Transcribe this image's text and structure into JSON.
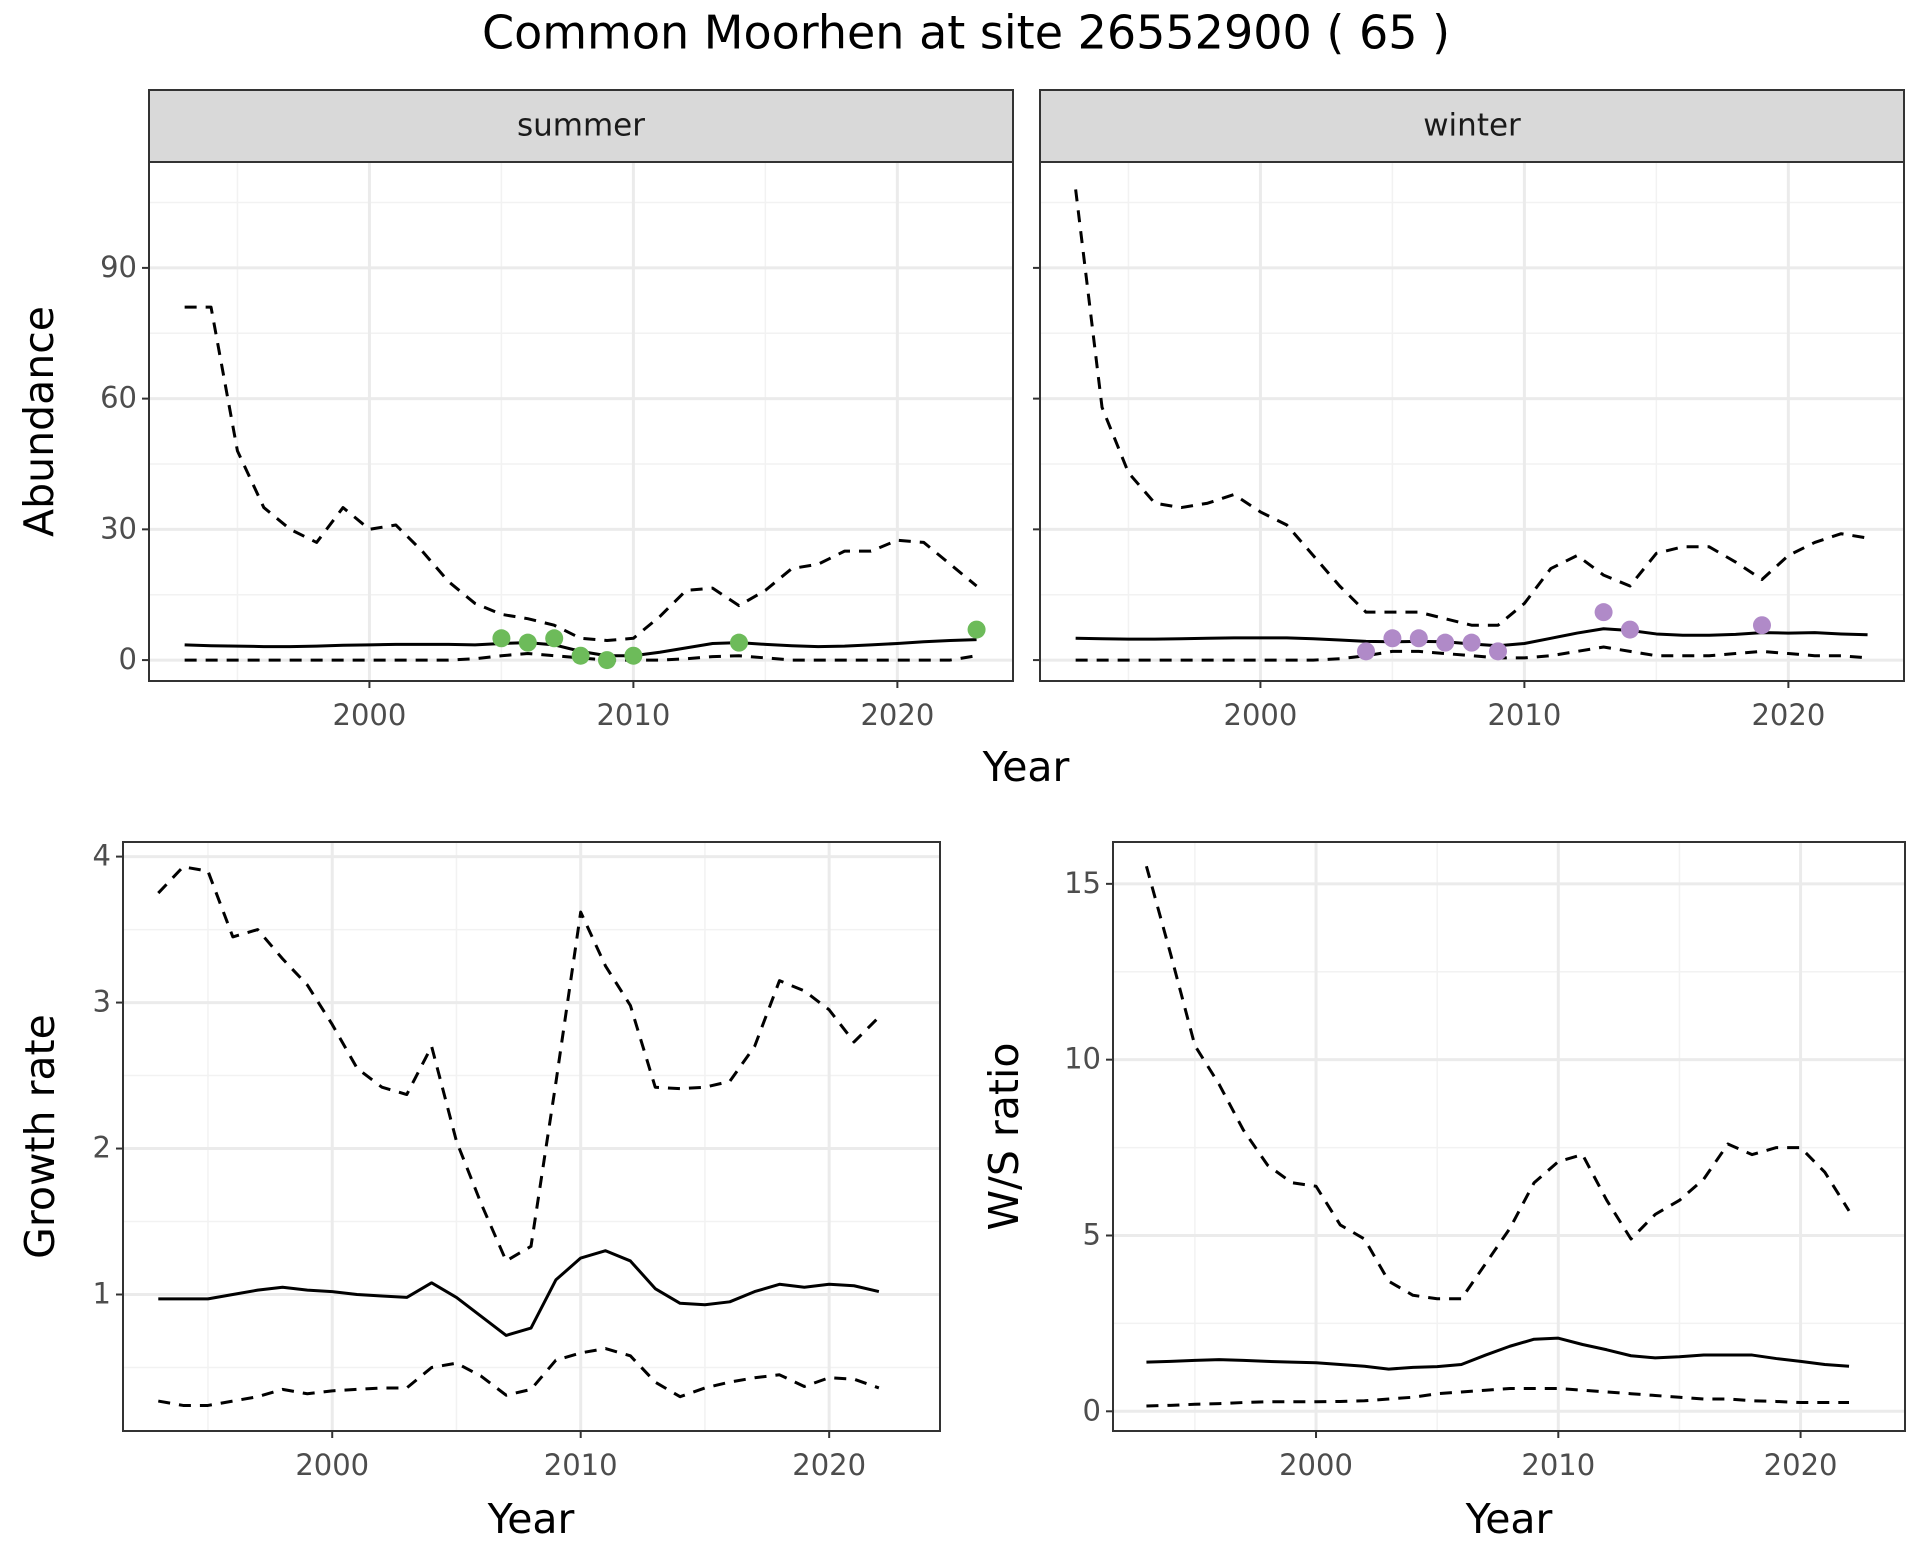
{
  "title": "Common Moorhen at site 26552900 ( 65 )",
  "chart_data": [
    {
      "type": "line",
      "facet": "summer",
      "ylabel": "Abundance",
      "xlabel": "Year",
      "ytick_labels": true,
      "x": [
        1993,
        1994,
        1995,
        1996,
        1997,
        1998,
        1999,
        2000,
        2001,
        2002,
        2003,
        2004,
        2005,
        2006,
        2007,
        2008,
        2009,
        2010,
        2011,
        2012,
        2013,
        2014,
        2015,
        2016,
        2017,
        2018,
        2019,
        2020,
        2021,
        2022,
        2023
      ],
      "series": [
        {
          "color": "#000000",
          "linestyle": "dashed",
          "values": [
            81,
            81,
            48,
            35,
            30,
            27,
            35,
            30,
            31,
            25,
            18,
            13,
            10.5,
            9.5,
            8,
            5,
            4.5,
            5,
            10,
            16,
            16.5,
            12.5,
            16,
            21,
            22,
            25,
            25,
            27.5,
            27,
            22,
            17
          ]
        },
        {
          "color": "#000000",
          "linestyle": "dashed",
          "values": [
            0,
            0,
            0,
            0,
            0,
            0,
            0,
            0,
            0,
            0,
            0,
            0.3,
            1,
            1.5,
            1,
            0.5,
            0,
            0,
            0,
            0.3,
            0.8,
            1,
            0.5,
            0,
            0,
            0,
            0,
            0,
            0,
            0,
            1
          ]
        },
        {
          "color": "#000000",
          "linestyle": "solid",
          "values": [
            3.5,
            3.3,
            3.2,
            3.1,
            3.1,
            3.2,
            3.4,
            3.5,
            3.6,
            3.6,
            3.6,
            3.5,
            3.8,
            4,
            3.5,
            2,
            1,
            1,
            1.8,
            2.8,
            3.8,
            4,
            3.6,
            3.3,
            3.1,
            3.2,
            3.5,
            3.8,
            4.2,
            4.5,
            4.7
          ]
        },
        {
          "color": "#6dbb5a",
          "marker": "point",
          "values": [
            null,
            null,
            null,
            null,
            null,
            null,
            null,
            null,
            null,
            null,
            null,
            null,
            5,
            4,
            5,
            1,
            0,
            1,
            null,
            null,
            null,
            4,
            null,
            null,
            null,
            null,
            null,
            null,
            null,
            null,
            7
          ]
        }
      ],
      "xlim": [
        1991.65,
        2024.38
      ],
      "ylim": [
        -4.8,
        114.3
      ],
      "xticks": [
        2000,
        2010,
        2020
      ],
      "yticks": [
        0,
        30,
        60,
        90
      ],
      "xminor": [
        1995,
        2005,
        2015
      ],
      "yminor": [
        15,
        45,
        75,
        105
      ],
      "grid": true
    },
    {
      "type": "line",
      "facet": "winter",
      "ytick_labels": false,
      "x": [
        1993,
        1994,
        1995,
        1996,
        1997,
        1998,
        1999,
        2000,
        2001,
        2002,
        2003,
        2004,
        2005,
        2006,
        2007,
        2008,
        2009,
        2010,
        2011,
        2012,
        2013,
        2014,
        2015,
        2016,
        2017,
        2018,
        2019,
        2020,
        2021,
        2022,
        2023
      ],
      "series": [
        {
          "color": "#000000",
          "linestyle": "dashed",
          "values": [
            108,
            58,
            43,
            36,
            35,
            36,
            38,
            34,
            31,
            24,
            17,
            11,
            11,
            11,
            9.5,
            8,
            8,
            13,
            21,
            24,
            19.5,
            17,
            24.5,
            26,
            26,
            22.5,
            18.5,
            24,
            27,
            29,
            28
          ]
        },
        {
          "color": "#000000",
          "linestyle": "dashed",
          "values": [
            0,
            0,
            0,
            0,
            0,
            0,
            0,
            0,
            0,
            0,
            0.3,
            1,
            2,
            2,
            1.5,
            1,
            0.5,
            0.5,
            1,
            2,
            3,
            2,
            1,
            1,
            1,
            1.5,
            2,
            1.5,
            1,
            1,
            0.5
          ]
        },
        {
          "color": "#000000",
          "linestyle": "solid",
          "values": [
            5,
            4.9,
            4.8,
            4.8,
            4.9,
            5,
            5.1,
            5.1,
            5.1,
            4.9,
            4.6,
            4.3,
            4.2,
            4.3,
            4.2,
            3.7,
            3.3,
            3.8,
            5,
            6.2,
            7.2,
            6.8,
            6,
            5.7,
            5.7,
            5.9,
            6.3,
            6.2,
            6.3,
            6,
            5.8
          ]
        },
        {
          "color": "#b08ac8",
          "marker": "point",
          "values": [
            null,
            null,
            null,
            null,
            null,
            null,
            null,
            null,
            null,
            null,
            null,
            2,
            5,
            5,
            4,
            4,
            2,
            null,
            null,
            null,
            11,
            7,
            null,
            null,
            null,
            null,
            8,
            null,
            null,
            null,
            null
          ]
        }
      ],
      "xlim": [
        1991.65,
        2024.38
      ],
      "ylim": [
        -4.8,
        114.3
      ],
      "xticks": [
        2000,
        2010,
        2020
      ],
      "yticks": [
        0,
        30,
        60,
        90
      ],
      "xminor": [
        1995,
        2005,
        2015
      ],
      "yminor": [
        15,
        45,
        75,
        105
      ],
      "grid": true
    },
    {
      "type": "line",
      "ylabel": "Growth rate",
      "xlabel": "Year",
      "ytick_labels": true,
      "x": [
        1993,
        1994,
        1995,
        1996,
        1997,
        1998,
        1999,
        2000,
        2001,
        2002,
        2003,
        2004,
        2005,
        2006,
        2007,
        2008,
        2009,
        2010,
        2011,
        2012,
        2013,
        2014,
        2015,
        2016,
        2017,
        2018,
        2019,
        2020,
        2021,
        2022
      ],
      "series": [
        {
          "color": "#000000",
          "linestyle": "dashed",
          "values": [
            3.75,
            3.93,
            3.9,
            3.45,
            3.5,
            3.3,
            3.12,
            2.85,
            2.55,
            2.42,
            2.37,
            2.7,
            2.05,
            1.62,
            1.23,
            1.33,
            2.45,
            3.62,
            3.25,
            2.98,
            2.42,
            2.41,
            2.42,
            2.46,
            2.7,
            3.15,
            3.08,
            2.95,
            2.73,
            2.9
          ]
        },
        {
          "color": "#000000",
          "linestyle": "dashed",
          "values": [
            0.27,
            0.24,
            0.24,
            0.27,
            0.3,
            0.35,
            0.32,
            0.34,
            0.35,
            0.36,
            0.36,
            0.5,
            0.53,
            0.44,
            0.31,
            0.35,
            0.55,
            0.6,
            0.63,
            0.58,
            0.4,
            0.3,
            0.36,
            0.4,
            0.43,
            0.45,
            0.37,
            0.43,
            0.42,
            0.36
          ]
        },
        {
          "color": "#000000",
          "linestyle": "solid",
          "values": [
            0.97,
            0.97,
            0.97,
            1.0,
            1.03,
            1.05,
            1.03,
            1.02,
            1.0,
            0.99,
            0.98,
            1.08,
            0.98,
            0.85,
            0.72,
            0.77,
            1.1,
            1.25,
            1.3,
            1.23,
            1.04,
            0.94,
            0.93,
            0.95,
            1.02,
            1.07,
            1.05,
            1.07,
            1.06,
            1.02
          ]
        }
      ],
      "xlim": [
        1991.58,
        2024.46
      ],
      "ylim": [
        0.065,
        4.1
      ],
      "xticks": [
        2000,
        2010,
        2020
      ],
      "yticks": [
        1,
        2,
        3,
        4
      ],
      "xminor": [
        1995,
        2005,
        2015
      ],
      "yminor": [
        0.5,
        1.5,
        2.5,
        3.5
      ],
      "grid": true
    },
    {
      "type": "line",
      "ylabel": "W/S ratio",
      "xlabel": "Year",
      "ytick_labels": true,
      "x": [
        1993,
        1994,
        1995,
        1996,
        1997,
        1998,
        1999,
        2000,
        2001,
        2002,
        2003,
        2004,
        2005,
        2006,
        2007,
        2008,
        2009,
        2010,
        2011,
        2012,
        2013,
        2014,
        2015,
        2016,
        2017,
        2018,
        2019,
        2020,
        2021,
        2022
      ],
      "series": [
        {
          "color": "#000000",
          "linestyle": "dashed",
          "values": [
            15.5,
            13,
            10.4,
            9.3,
            8,
            7,
            6.5,
            6.4,
            5.3,
            4.9,
            3.7,
            3.3,
            3.2,
            3.2,
            4.2,
            5.2,
            6.5,
            7.1,
            7.3,
            6,
            4.9,
            5.6,
            6,
            6.6,
            7.6,
            7.3,
            7.5,
            7.5,
            6.8,
            5.7
          ]
        },
        {
          "color": "#000000",
          "linestyle": "dashed",
          "values": [
            0.15,
            0.17,
            0.2,
            0.22,
            0.25,
            0.27,
            0.27,
            0.27,
            0.28,
            0.3,
            0.35,
            0.4,
            0.5,
            0.55,
            0.6,
            0.65,
            0.65,
            0.65,
            0.6,
            0.55,
            0.5,
            0.45,
            0.4,
            0.35,
            0.35,
            0.3,
            0.28,
            0.25,
            0.25,
            0.25
          ]
        },
        {
          "color": "#000000",
          "linestyle": "solid",
          "values": [
            1.4,
            1.42,
            1.45,
            1.47,
            1.45,
            1.42,
            1.4,
            1.38,
            1.33,
            1.28,
            1.2,
            1.25,
            1.27,
            1.33,
            1.6,
            1.85,
            2.05,
            2.08,
            1.9,
            1.75,
            1.58,
            1.52,
            1.55,
            1.6,
            1.6,
            1.6,
            1.5,
            1.42,
            1.33,
            1.28
          ]
        }
      ],
      "xlim": [
        1991.62,
        2024.31
      ],
      "ylim": [
        -0.56,
        16.19
      ],
      "xticks": [
        2000,
        2010,
        2020
      ],
      "yticks": [
        0,
        5,
        10,
        15
      ],
      "xminor": [
        1995,
        2005,
        2015
      ],
      "yminor": [
        2.5,
        7.5,
        12.5
      ],
      "grid": true
    }
  ]
}
